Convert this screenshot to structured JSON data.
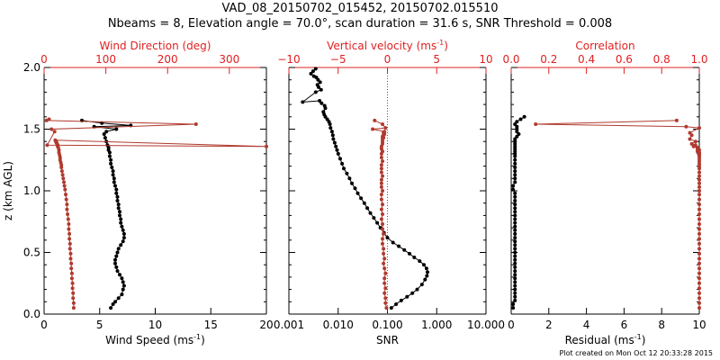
{
  "title_line1": "VAD_08_20150702_015452, 20150702.015510",
  "title_line2": "Nbeams = 8, Elevation angle = 70.0°, scan duration = 31.6 s, SNR Threshold = 0.008",
  "footer": "Plot created on Mon Oct 12 20:33:28 2015",
  "colors": {
    "black_series": "#000000",
    "red_series": "#b03a2e",
    "red_axis": "#e02020"
  },
  "chart_data": [
    {
      "type": "line",
      "name": "wind",
      "ylabel": "z (km AGL)",
      "ylim": [
        0,
        2
      ],
      "yticks": [
        0.0,
        0.5,
        1.0,
        1.5,
        2.0
      ],
      "ytick_labels": [
        "0.0",
        "0.5",
        "1.0",
        "1.5",
        "2.0"
      ],
      "bottom_axis": {
        "label": "Wind Speed (ms",
        "label_sup": "-1",
        "label_end": ")",
        "range": [
          0,
          20
        ],
        "ticks": [
          0,
          5,
          10,
          15,
          20
        ],
        "tick_labels": [
          "0",
          "5",
          "10",
          "15",
          "20"
        ]
      },
      "top_axis": {
        "label": "Wind Direction (deg)",
        "range": [
          0,
          360
        ],
        "ticks": [
          0,
          100,
          200,
          300
        ],
        "tick_labels": [
          "0",
          "100",
          "200",
          "300"
        ]
      },
      "series": [
        {
          "axis": "bottom",
          "color": "black",
          "x": [
            6.0,
            6.2,
            6.4,
            6.7,
            7.0,
            7.1,
            7.2,
            7.1,
            7.0,
            6.8,
            6.6,
            6.5,
            6.4,
            6.4,
            6.5,
            6.6,
            6.7,
            6.9,
            7.1,
            7.2,
            7.2,
            7.1,
            7.0,
            6.9,
            6.9,
            6.8,
            6.8,
            6.7,
            6.7,
            6.6,
            6.6,
            6.5,
            6.5,
            6.4,
            6.3,
            6.3,
            6.2,
            6.2,
            6.1,
            6.0,
            6.0,
            5.9,
            5.9,
            5.8,
            5.8,
            5.7,
            5.6,
            5.5,
            5.4,
            5.6,
            6.5,
            4.5,
            7.8,
            5.2,
            3.4
          ],
          "y": [
            0.05,
            0.08,
            0.1,
            0.13,
            0.16,
            0.2,
            0.23,
            0.26,
            0.29,
            0.32,
            0.35,
            0.38,
            0.41,
            0.44,
            0.47,
            0.5,
            0.53,
            0.56,
            0.59,
            0.62,
            0.65,
            0.68,
            0.71,
            0.74,
            0.77,
            0.8,
            0.83,
            0.86,
            0.89,
            0.92,
            0.95,
            0.98,
            1.01,
            1.04,
            1.07,
            1.1,
            1.13,
            1.16,
            1.19,
            1.22,
            1.25,
            1.28,
            1.31,
            1.33,
            1.35,
            1.37,
            1.4,
            1.43,
            1.46,
            1.48,
            1.5,
            1.52,
            1.53,
            1.55,
            1.57
          ]
        },
        {
          "axis": "top",
          "color": "red",
          "x": [
            48,
            48,
            47,
            47,
            46,
            46,
            45,
            45,
            44,
            44,
            43,
            43,
            42,
            42,
            41,
            41,
            40,
            40,
            39,
            38,
            37,
            37,
            36,
            35,
            34,
            33,
            32,
            31,
            30,
            29,
            28,
            28,
            27,
            26,
            26,
            25,
            24,
            24,
            23,
            22,
            22,
            21,
            20,
            20,
            19,
            18,
            360,
            5,
            17,
            12,
            246,
            4,
            8
          ],
          "y": [
            0.05,
            0.09,
            0.13,
            0.17,
            0.21,
            0.25,
            0.29,
            0.33,
            0.37,
            0.41,
            0.45,
            0.49,
            0.53,
            0.57,
            0.61,
            0.65,
            0.69,
            0.73,
            0.77,
            0.81,
            0.85,
            0.89,
            0.93,
            0.97,
            1.01,
            1.04,
            1.07,
            1.1,
            1.13,
            1.16,
            1.19,
            1.21,
            1.23,
            1.25,
            1.27,
            1.29,
            1.31,
            1.33,
            1.35,
            1.36,
            1.37,
            1.38,
            1.39,
            1.4,
            1.4,
            1.41,
            1.36,
            1.37,
            1.48,
            1.5,
            1.54,
            1.57,
            1.58
          ]
        }
      ]
    },
    {
      "type": "line",
      "name": "snr",
      "ylim": [
        0,
        2
      ],
      "bottom_axis": {
        "label": "SNR",
        "scale": "log",
        "range": [
          0.001,
          10
        ],
        "ticks": [
          0.001,
          0.01,
          0.1,
          1,
          10
        ],
        "tick_labels": [
          "0.001",
          "0.010",
          "0.100",
          "1.000",
          "10.000"
        ]
      },
      "top_axis": {
        "label": "Vertical velocity (ms",
        "label_sup": "-1",
        "label_end": ")",
        "range": [
          -10,
          10
        ],
        "ticks": [
          -10,
          -5,
          0,
          5,
          10
        ],
        "tick_labels": [
          "−10",
          "−5",
          "0",
          "5",
          "10"
        ]
      },
      "series": [
        {
          "axis": "bottom",
          "color": "black",
          "x": [
            0.12,
            0.15,
            0.19,
            0.25,
            0.32,
            0.4,
            0.5,
            0.58,
            0.63,
            0.65,
            0.62,
            0.55,
            0.45,
            0.35,
            0.28,
            0.22,
            0.17,
            0.13,
            0.1,
            0.085,
            0.072,
            0.062,
            0.053,
            0.045,
            0.039,
            0.034,
            0.029,
            0.025,
            0.022,
            0.019,
            0.017,
            0.015,
            0.013,
            0.012,
            0.011,
            0.01,
            0.0095,
            0.009,
            0.0085,
            0.008,
            0.0078,
            0.0075,
            0.007,
            0.0068,
            0.0065,
            0.006,
            0.0055,
            0.0052,
            0.005,
            0.0055,
            0.0053,
            0.0046,
            0.0042,
            0.0019,
            0.0035,
            0.0045,
            0.004,
            0.0038,
            0.0043,
            0.0039,
            0.0036,
            0.0032,
            0.0028,
            0.0031,
            0.0035
          ],
          "y": [
            0.05,
            0.08,
            0.11,
            0.14,
            0.17,
            0.2,
            0.24,
            0.28,
            0.31,
            0.34,
            0.37,
            0.4,
            0.43,
            0.46,
            0.49,
            0.52,
            0.55,
            0.58,
            0.62,
            0.66,
            0.7,
            0.74,
            0.78,
            0.82,
            0.86,
            0.9,
            0.94,
            0.98,
            1.02,
            1.06,
            1.1,
            1.14,
            1.18,
            1.22,
            1.26,
            1.3,
            1.33,
            1.36,
            1.39,
            1.42,
            1.45,
            1.48,
            1.51,
            1.54,
            1.56,
            1.58,
            1.6,
            1.62,
            1.64,
            1.67,
            1.69,
            1.71,
            1.73,
            1.72,
            1.8,
            1.82,
            1.84,
            1.86,
            1.88,
            1.9,
            1.92,
            1.93,
            1.95,
            1.97,
            1.99
          ]
        },
        {
          "axis": "top",
          "color": "red",
          "x": [
            -0.1,
            -0.2,
            -0.2,
            -0.3,
            -0.2,
            -0.3,
            -0.3,
            -0.2,
            -0.3,
            -0.4,
            -0.3,
            -0.4,
            -0.4,
            -0.5,
            -0.5,
            -0.4,
            -0.5,
            -0.5,
            -0.6,
            -0.5,
            -0.6,
            -0.5,
            -0.6,
            -0.6,
            -0.5,
            -0.6,
            -0.6,
            -0.6,
            -0.5,
            -0.6,
            -0.6,
            -0.6,
            -0.5,
            -0.6,
            -0.6,
            -0.5,
            -0.6,
            -0.6,
            -0.5,
            -0.5,
            -0.5,
            -0.4,
            -0.5,
            -0.4,
            -0.3,
            -0.4,
            -0.3,
            -1.5,
            -0.2,
            -0.5,
            -1.3
          ],
          "y": [
            0.05,
            0.09,
            0.13,
            0.17,
            0.21,
            0.25,
            0.29,
            0.33,
            0.37,
            0.41,
            0.45,
            0.49,
            0.53,
            0.57,
            0.61,
            0.65,
            0.69,
            0.73,
            0.77,
            0.81,
            0.85,
            0.89,
            0.93,
            0.97,
            1.0,
            1.03,
            1.06,
            1.09,
            1.12,
            1.15,
            1.18,
            1.21,
            1.24,
            1.27,
            1.3,
            1.32,
            1.34,
            1.36,
            1.38,
            1.4,
            1.42,
            1.43,
            1.44,
            1.45,
            1.46,
            1.47,
            1.48,
            1.5,
            1.51,
            1.54,
            1.57
          ]
        }
      ]
    },
    {
      "type": "line",
      "name": "residual",
      "ylim": [
        0,
        2
      ],
      "bottom_axis": {
        "label": "Residual (ms",
        "label_sup": "-1",
        "label_end": ")",
        "range": [
          0,
          10
        ],
        "ticks": [
          0,
          2,
          4,
          6,
          8,
          10
        ],
        "tick_labels": [
          "0",
          "2",
          "4",
          "6",
          "8",
          "10"
        ]
      },
      "top_axis": {
        "label": "Correlation",
        "range": [
          0,
          1
        ],
        "ticks": [
          0,
          0.2,
          0.4,
          0.6,
          0.8,
          1.0
        ],
        "tick_labels": [
          "0.0",
          "0.2",
          "0.4",
          "0.6",
          "0.8",
          "1.0"
        ]
      },
      "series": [
        {
          "axis": "bottom",
          "color": "black",
          "x": [
            0.1,
            0.1,
            0.2,
            0.2,
            0.2,
            0.2,
            0.2,
            0.2,
            0.2,
            0.2,
            0.2,
            0.2,
            0.2,
            0.2,
            0.2,
            0.2,
            0.2,
            0.2,
            0.2,
            0.2,
            0.2,
            0.2,
            0.2,
            0.2,
            0.2,
            0.2,
            0.2,
            0.2,
            0.2,
            0.2,
            0.2,
            0.2,
            0.1,
            0.1,
            0.2,
            0.2,
            0.2,
            0.2,
            0.2,
            0.2,
            0.2,
            0.2,
            0.2,
            0.2,
            0.2,
            0.2,
            0.2,
            0.2,
            0.2,
            0.3,
            0.4,
            0.3,
            0.3,
            0.3,
            0.2,
            0.3,
            0.5,
            0.7
          ],
          "y": [
            0.05,
            0.08,
            0.11,
            0.14,
            0.17,
            0.2,
            0.23,
            0.26,
            0.29,
            0.32,
            0.35,
            0.38,
            0.41,
            0.44,
            0.47,
            0.5,
            0.53,
            0.56,
            0.59,
            0.62,
            0.65,
            0.68,
            0.71,
            0.74,
            0.77,
            0.8,
            0.83,
            0.86,
            0.89,
            0.92,
            0.95,
            0.98,
            1.01,
            1.04,
            1.07,
            1.1,
            1.13,
            1.16,
            1.19,
            1.22,
            1.25,
            1.28,
            1.3,
            1.32,
            1.34,
            1.36,
            1.38,
            1.4,
            1.42,
            1.44,
            1.46,
            1.48,
            1.5,
            1.52,
            1.54,
            1.56,
            1.58,
            1.6
          ]
        },
        {
          "axis": "top",
          "color": "red",
          "x": [
            1.0,
            1.0,
            1.0,
            1.0,
            1.0,
            1.0,
            1.0,
            1.0,
            1.0,
            1.0,
            1.0,
            1.0,
            1.0,
            1.0,
            1.0,
            1.0,
            1.0,
            1.0,
            1.0,
            1.0,
            1.0,
            1.0,
            1.0,
            1.0,
            1.0,
            1.0,
            1.0,
            1.0,
            1.0,
            1.0,
            1.0,
            1.0,
            1.0,
            1.0,
            1.0,
            1.0,
            1.0,
            1.0,
            1.0,
            0.99,
            1.0,
            0.99,
            0.99,
            0.97,
            0.98,
            0.96,
            0.98,
            0.95,
            0.96,
            0.95,
            1.0,
            0.93,
            0.13,
            0.88
          ],
          "y": [
            0.05,
            0.09,
            0.13,
            0.17,
            0.21,
            0.25,
            0.29,
            0.33,
            0.37,
            0.41,
            0.45,
            0.49,
            0.53,
            0.57,
            0.61,
            0.65,
            0.69,
            0.73,
            0.77,
            0.81,
            0.85,
            0.89,
            0.93,
            0.97,
            1.0,
            1.03,
            1.06,
            1.09,
            1.12,
            1.15,
            1.18,
            1.2,
            1.22,
            1.24,
            1.26,
            1.28,
            1.29,
            1.3,
            1.31,
            1.32,
            1.33,
            1.34,
            1.35,
            1.36,
            1.37,
            1.38,
            1.4,
            1.42,
            1.45,
            1.47,
            1.51,
            1.52,
            1.54,
            1.57
          ]
        }
      ]
    }
  ]
}
